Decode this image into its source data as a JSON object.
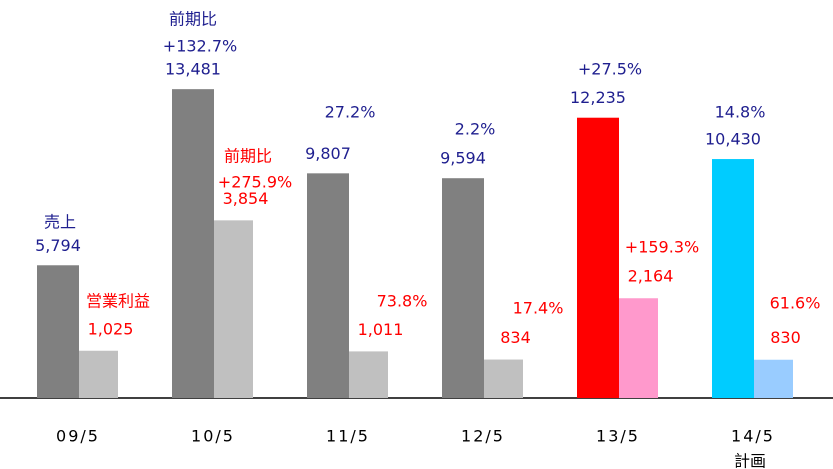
{
  "chart_data": {
    "type": "bar",
    "categories": [
      "09/5",
      "10/5",
      "11/5",
      "12/5",
      "13/5",
      "14/5"
    ],
    "series": [
      {
        "name": "売上",
        "colors": [
          "#808080",
          "#808080",
          "#808080",
          "#808080",
          "#ff0000",
          "#00ccff"
        ],
        "label_color": "#1f1f8f",
        "values": [
          5794,
          13481,
          9807,
          9594,
          12235,
          10430
        ],
        "value_labels": [
          "5,794",
          "13,481",
          "9,807",
          "9,594",
          "12,235",
          "10,430"
        ]
      },
      {
        "name": "営業利益",
        "axis": "y2",
        "colors": [
          "#c0c0c0",
          "#c0c0c0",
          "#c0c0c0",
          "#c0c0c0",
          "#ff99cc",
          "#99ccff"
        ],
        "label_color": "#ff0000",
        "values": [
          1025,
          3854,
          1011,
          834,
          2164,
          830
        ],
        "value_labels": [
          "1,025",
          "3,854",
          "1,011",
          "834",
          "2,164",
          "830"
        ]
      }
    ],
    "ylim": [
      0,
      16500
    ],
    "y2lim": [
      0,
      8200
    ],
    "annotations": [
      {
        "text": "前期比",
        "color": "#1f1f8f"
      },
      {
        "text": "+132.7%",
        "color": "#1f1f8f"
      },
      {
        "text": "27.2%",
        "color": "#1f1f8f"
      },
      {
        "text": "2.2%",
        "color": "#1f1f8f"
      },
      {
        "text": "+27.5%",
        "color": "#1f1f8f"
      },
      {
        "text": "14.8%",
        "color": "#1f1f8f"
      },
      {
        "text": "前期比",
        "color": "#ff0000"
      },
      {
        "text": "+275.9%",
        "color": "#ff0000"
      },
      {
        "text": "73.8%",
        "color": "#ff0000"
      },
      {
        "text": "17.4%",
        "color": "#ff0000"
      },
      {
        "text": "+159.3%",
        "color": "#ff0000"
      },
      {
        "text": "61.6%",
        "color": "#ff0000"
      },
      {
        "text": "計画",
        "color": "#000000"
      }
    ]
  }
}
